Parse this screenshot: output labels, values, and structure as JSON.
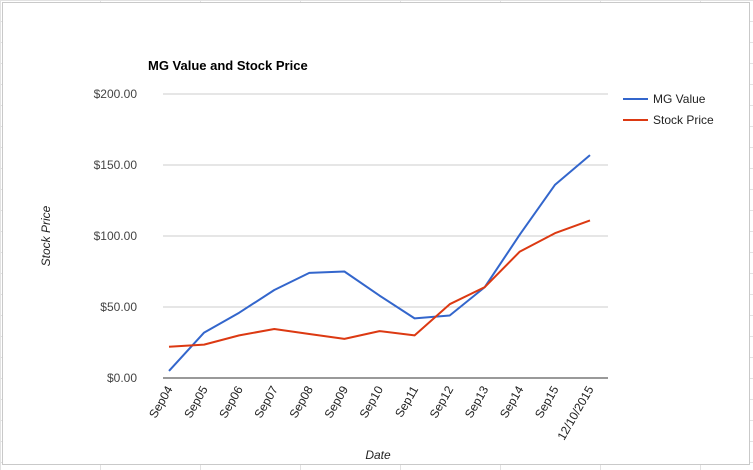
{
  "chart_data": {
    "type": "line",
    "title": "MG Value and Stock Price",
    "xlabel": "Date",
    "ylabel": "Stock Price",
    "categories": [
      "Sep04",
      "Sep05",
      "Sep06",
      "Sep07",
      "Sep08",
      "Sep09",
      "Sep10",
      "Sep11",
      "Sep12",
      "Sep13",
      "Sep14",
      "Sep15",
      "12/10/2015"
    ],
    "yticks": [
      "$0.00",
      "$50.00",
      "$100.00",
      "$150.00",
      "$200.00"
    ],
    "ylim": [
      0,
      200
    ],
    "grid": true,
    "legend_position": "right",
    "series": [
      {
        "name": "MG Value",
        "color": "#3366cc",
        "values": [
          5,
          32,
          46,
          62,
          74,
          75,
          58,
          42,
          44,
          64,
          101,
          136,
          157
        ]
      },
      {
        "name": "Stock Price",
        "color": "#dc3912",
        "values": [
          22,
          23.5,
          30,
          34.5,
          31,
          27.5,
          33,
          30,
          52,
          64,
          89,
          102,
          111
        ]
      }
    ]
  }
}
